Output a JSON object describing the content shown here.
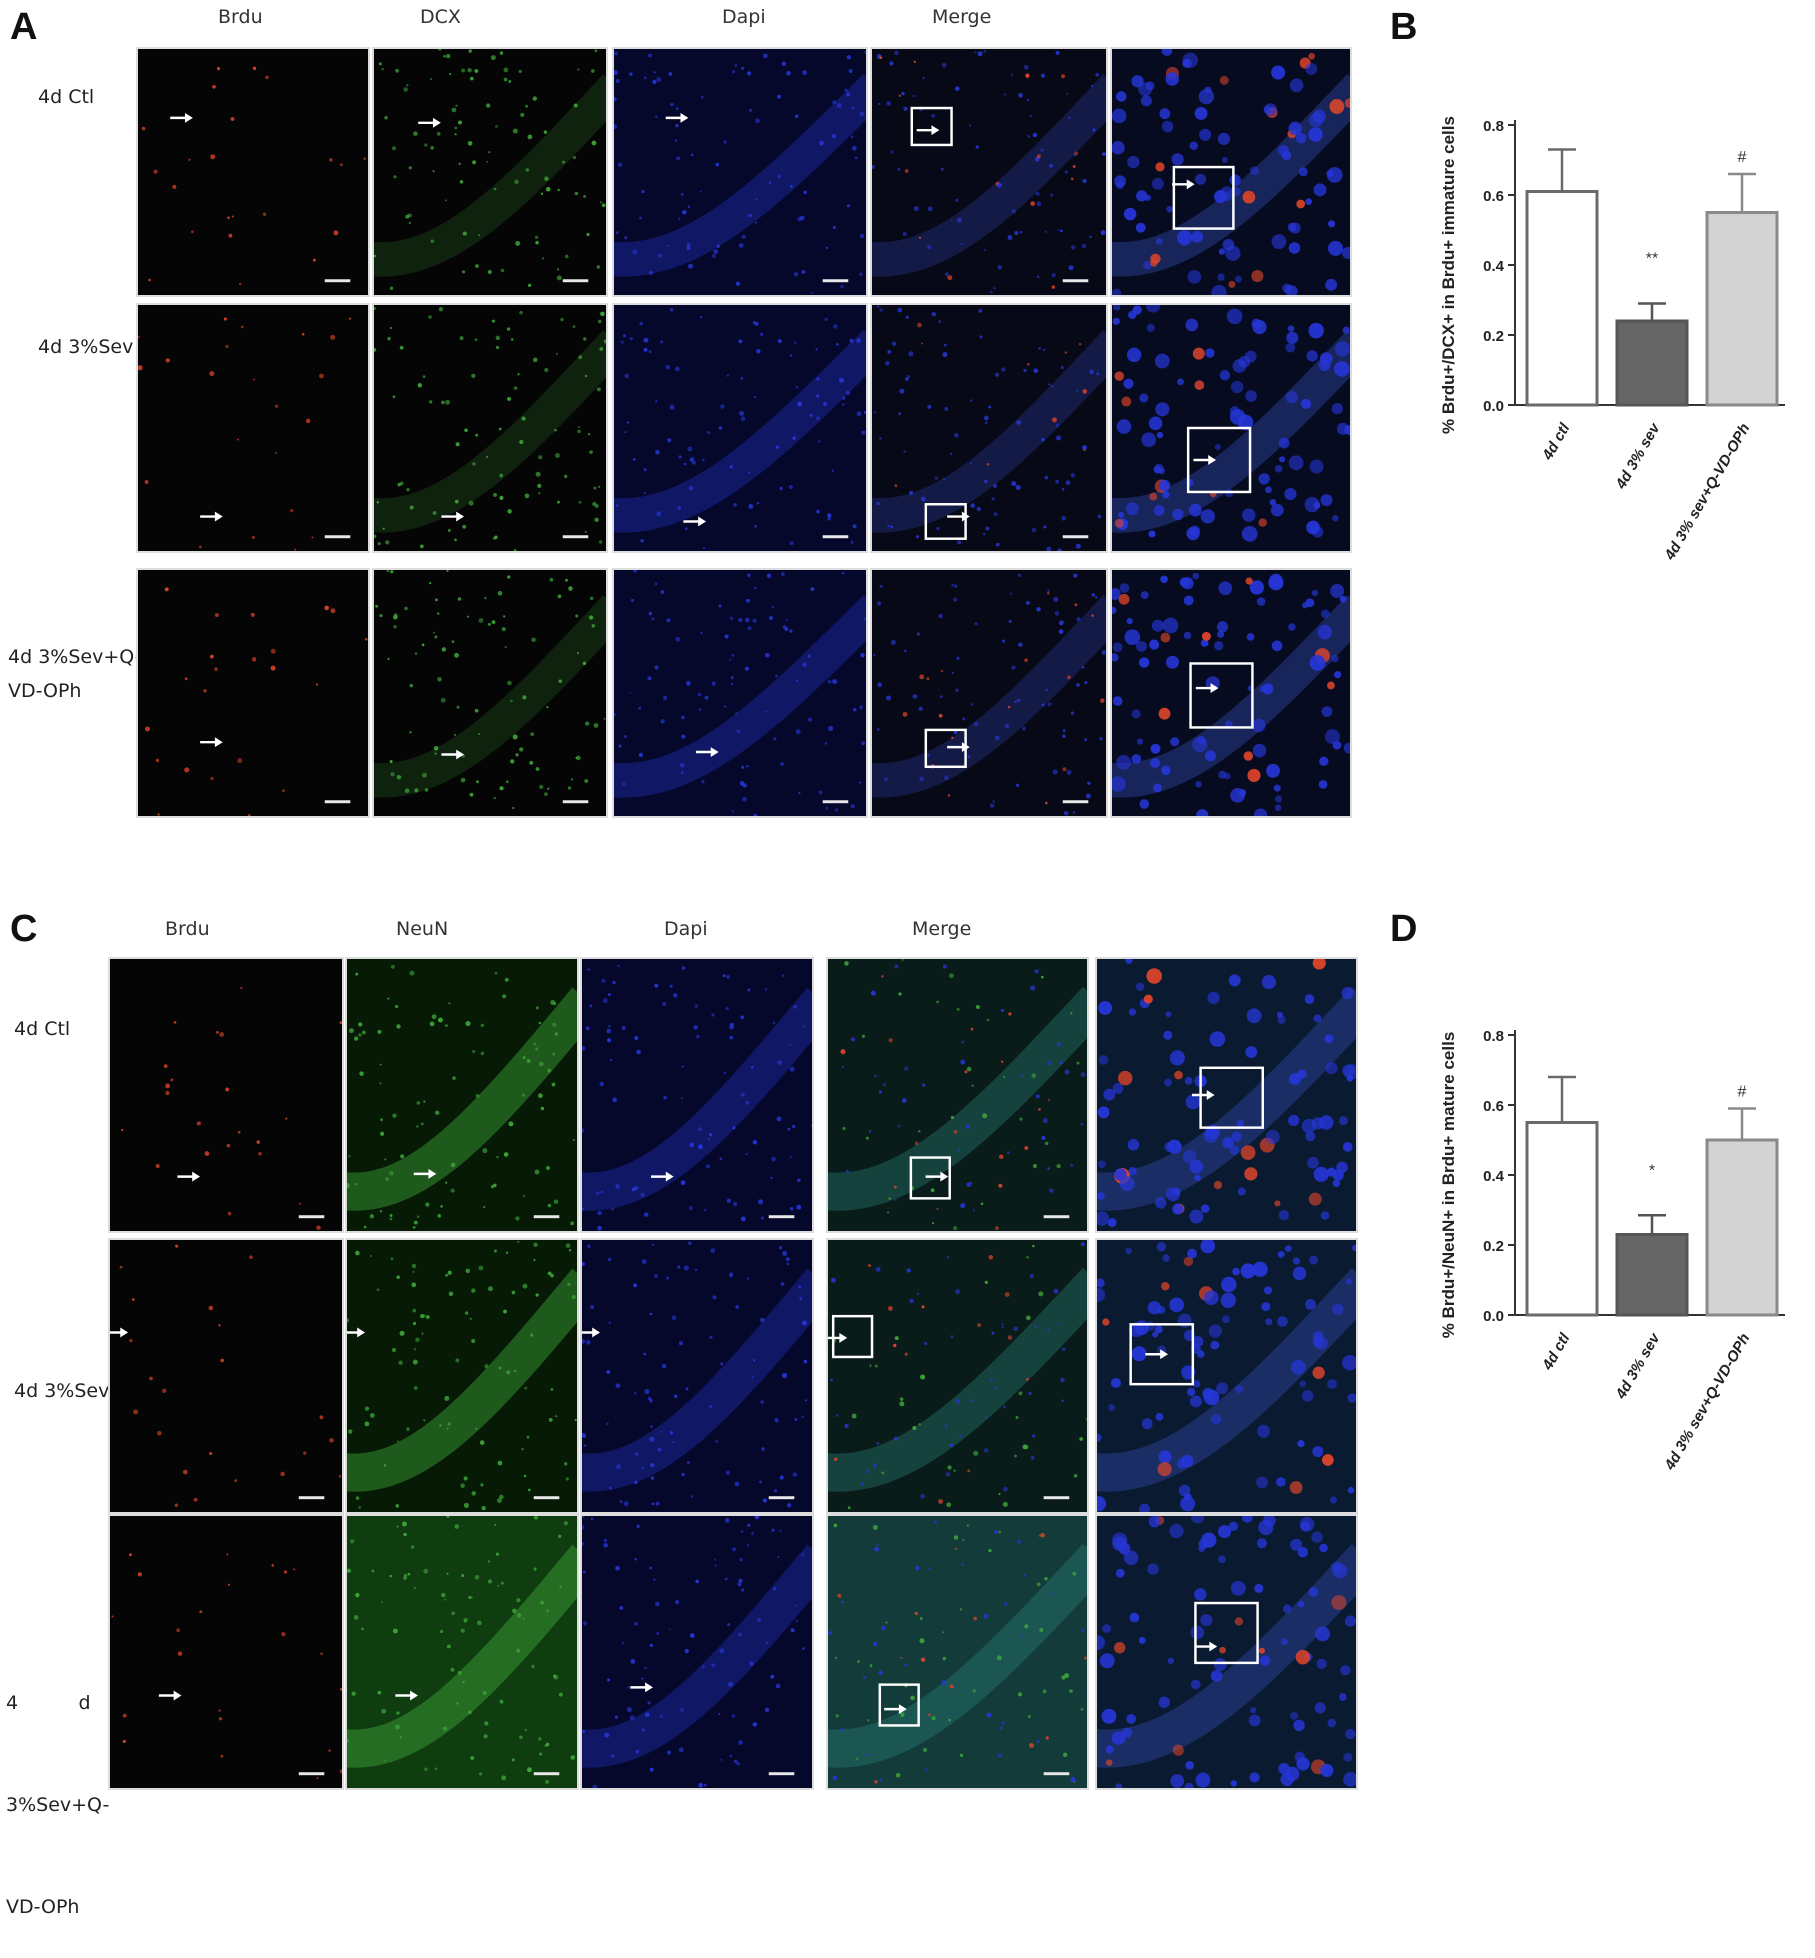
{
  "panels": {
    "a": {
      "letter": "A",
      "columns": [
        "Brdu",
        "DCX",
        "Dapi",
        "Merge"
      ],
      "rows": [
        {
          "label_lines": [
            "4d Ctl"
          ]
        },
        {
          "label_lines": [
            "4d 3%Sev"
          ]
        },
        {
          "label_lines": [
            "4d 3%Sev+Q-",
            "VD-OPh"
          ]
        }
      ]
    },
    "b": {
      "letter": "B"
    },
    "c": {
      "letter": "C",
      "columns": [
        "Brdu",
        "NeuN",
        "Dapi",
        "Merge"
      ],
      "rows": [
        {
          "label_lines": [
            "4d Ctl"
          ]
        },
        {
          "label_lines": [
            "4d 3%Sev"
          ]
        },
        {
          "label_lines": [
            "4          d",
            "3%Sev+Q-",
            "VD-OPh"
          ]
        }
      ]
    },
    "d": {
      "letter": "D"
    }
  },
  "colors": {
    "brdu": "#e0452a",
    "green": "#3fa83a",
    "dapi": "#2636d8",
    "ctl_bar": "#ffffff",
    "sev_bar": "#666666",
    "qvd_bar": "#d3d3d3"
  },
  "chart_data": [
    {
      "type": "bar",
      "panel": "B",
      "categories": [
        "4d ctl",
        "4d 3% sev",
        "4d 3% sev+Q-VD-OPh"
      ],
      "values": [
        0.61,
        0.24,
        0.55
      ],
      "errors": [
        0.12,
        0.05,
        0.11
      ],
      "annotations": [
        "",
        "**",
        "#"
      ],
      "ylabel": "%  Brdu+/DCX+ in Brdu+ immature cells",
      "yticks": [
        "0.0",
        "0.2",
        "0.4",
        "0.6",
        "0.8"
      ],
      "ylim": [
        0,
        0.8
      ],
      "grid": false
    },
    {
      "type": "bar",
      "panel": "D",
      "categories": [
        "4d ctl",
        "4d 3% sev",
        "4d 3% sev+Q-VD-OPh"
      ],
      "values": [
        0.55,
        0.23,
        0.5
      ],
      "errors": [
        0.13,
        0.055,
        0.09
      ],
      "annotations": [
        "",
        "*",
        "#"
      ],
      "ylabel": "%  Brdu+/NeuN+ in Brdu+ mature cells",
      "yticks": [
        "0.0",
        "0.2",
        "0.4",
        "0.6",
        "0.8"
      ],
      "ylim": [
        0,
        0.8
      ],
      "grid": false
    }
  ]
}
